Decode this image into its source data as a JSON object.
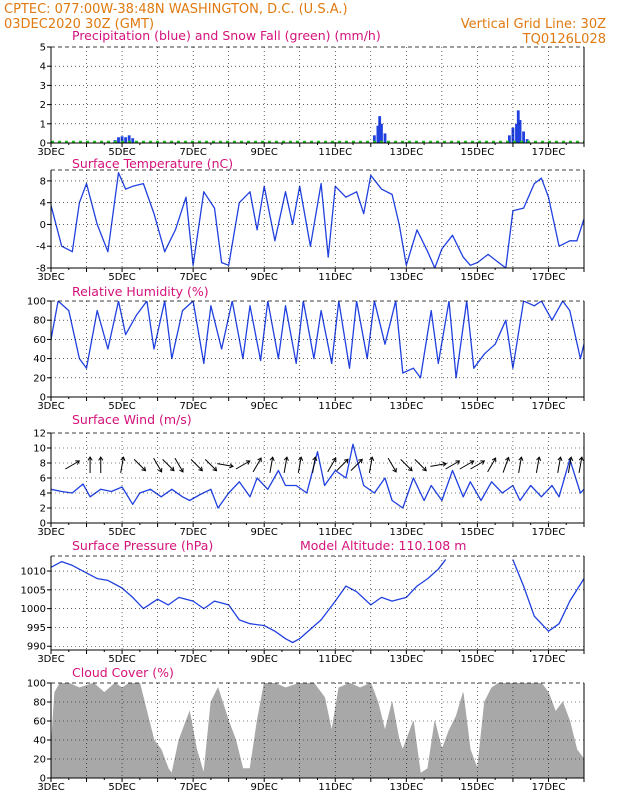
{
  "header": {
    "line1": "CPTEC:   077:00W-38:48N   WASHINGTON, D.C. (U.S.A.)",
    "line2": "03DEC2020 30Z (GMT)",
    "grid_note": "Vertical Grid Line: 30Z",
    "code": "TQ0126L028"
  },
  "colors": {
    "header": "#e07a10",
    "title": "#d4127a",
    "line": "#2040e0",
    "rain": "#2040e0",
    "snow": "#20c020",
    "cloud": "#a8a8a8"
  },
  "x_labels": [
    "3DEC",
    "5DEC",
    "7DEC",
    "9DEC",
    "11DEC",
    "13DEC",
    "15DEC",
    "17DEC"
  ],
  "x_label_days": [
    3,
    5,
    7,
    9,
    11,
    13,
    15,
    17
  ],
  "x_range_days": [
    3,
    18
  ],
  "chart_data": [
    {
      "type": "bar",
      "title": "Precipitation (blue) and Snow Fall (green) (mm/h)",
      "ylim": [
        0,
        5
      ],
      "yticks": [
        0,
        1,
        2,
        3,
        4,
        5
      ],
      "series": [
        {
          "name": "Precipitation",
          "x": [
            4.8,
            4.9,
            5.0,
            5.1,
            5.2,
            5.3,
            5.4,
            12.1,
            12.2,
            12.25,
            12.3,
            12.4,
            12.5,
            15.9,
            16.0,
            16.1,
            16.15,
            16.2,
            16.3,
            16.4
          ],
          "values": [
            0.15,
            0.3,
            0.35,
            0.3,
            0.4,
            0.25,
            0.1,
            0.4,
            0.9,
            1.4,
            1.0,
            0.5,
            0.1,
            0.4,
            0.8,
            1.0,
            1.7,
            1.2,
            0.6,
            0.2
          ]
        },
        {
          "name": "Snow Fall",
          "x": [
            3.0,
            5.0,
            7.0,
            9.0,
            11.0,
            13.0,
            15.0,
            17.0
          ],
          "values": [
            0.05,
            0.05,
            0.05,
            0.05,
            0.05,
            0.05,
            0.05,
            0.05
          ]
        }
      ]
    },
    {
      "type": "line",
      "title": "Surface Temperature (nC)",
      "ylim": [
        -8,
        10
      ],
      "yticks": [
        -8,
        -4,
        0,
        4,
        8
      ],
      "x": [
        3.0,
        3.3,
        3.6,
        3.8,
        4.0,
        4.3,
        4.6,
        4.9,
        5.1,
        5.3,
        5.6,
        5.9,
        6.2,
        6.5,
        6.8,
        7.0,
        7.3,
        7.6,
        7.8,
        8.0,
        8.3,
        8.6,
        8.8,
        9.0,
        9.3,
        9.6,
        9.8,
        10.0,
        10.3,
        10.6,
        10.8,
        11.0,
        11.3,
        11.6,
        11.8,
        12.0,
        12.3,
        12.6,
        12.8,
        13.0,
        13.3,
        13.6,
        13.8,
        14.0,
        14.3,
        14.6,
        14.8,
        15.0,
        15.3,
        15.6,
        15.8,
        16.0,
        16.3,
        16.6,
        16.8,
        17.0,
        17.3,
        17.6,
        17.8,
        18.0
      ],
      "values": [
        3.5,
        -4,
        -5,
        4,
        7.5,
        0,
        -5,
        9.5,
        6.5,
        7,
        7.5,
        2,
        -5,
        -1,
        5,
        -7.5,
        6,
        3,
        -7,
        -7.5,
        4,
        6,
        -1,
        7,
        -3,
        6,
        0,
        7,
        -4,
        7.5,
        -6,
        7,
        5,
        6,
        2,
        9,
        6.5,
        5.5,
        0,
        -7.5,
        -1,
        -5,
        -8,
        -4.5,
        -2,
        -6,
        -7.5,
        -7,
        -5.5,
        -7,
        -8,
        2.5,
        3,
        7.5,
        8.5,
        5,
        -4,
        -3,
        -3,
        1
      ]
    },
    {
      "type": "line",
      "title": "Relative Humidity (%)",
      "ylim": [
        0,
        100
      ],
      "yticks": [
        0,
        20,
        40,
        60,
        80,
        100
      ],
      "x": [
        3.0,
        3.2,
        3.5,
        3.8,
        4.0,
        4.3,
        4.6,
        4.9,
        5.1,
        5.4,
        5.7,
        5.9,
        6.2,
        6.4,
        6.7,
        7.0,
        7.3,
        7.5,
        7.8,
        8.1,
        8.4,
        8.6,
        8.9,
        9.1,
        9.4,
        9.6,
        9.9,
        10.1,
        10.4,
        10.6,
        10.9,
        11.1,
        11.4,
        11.6,
        11.9,
        12.1,
        12.4,
        12.7,
        12.9,
        13.2,
        13.4,
        13.7,
        13.9,
        14.2,
        14.4,
        14.7,
        14.9,
        15.2,
        15.5,
        15.8,
        16.0,
        16.3,
        16.6,
        16.8,
        17.1,
        17.4,
        17.6,
        17.9,
        18.0
      ],
      "values": [
        60,
        100,
        90,
        40,
        30,
        90,
        50,
        100,
        65,
        85,
        100,
        50,
        100,
        40,
        90,
        100,
        35,
        95,
        50,
        100,
        40,
        95,
        38,
        100,
        40,
        95,
        35,
        100,
        40,
        90,
        35,
        100,
        30,
        100,
        40,
        100,
        55,
        100,
        25,
        30,
        20,
        90,
        35,
        100,
        20,
        100,
        30,
        45,
        55,
        80,
        30,
        100,
        95,
        100,
        80,
        100,
        90,
        40,
        55
      ]
    },
    {
      "type": "line",
      "title": "Surface Wind (m/s)",
      "ylim": [
        0,
        12
      ],
      "yticks": [
        0,
        2,
        4,
        6,
        8,
        10,
        12
      ],
      "x": [
        3.0,
        3.3,
        3.6,
        3.9,
        4.1,
        4.4,
        4.7,
        5.0,
        5.3,
        5.5,
        5.8,
        6.1,
        6.4,
        6.7,
        6.9,
        7.2,
        7.5,
        7.7,
        8.0,
        8.3,
        8.6,
        8.8,
        9.1,
        9.4,
        9.6,
        9.9,
        10.2,
        10.5,
        10.7,
        11.0,
        11.3,
        11.5,
        11.8,
        12.1,
        12.4,
        12.6,
        12.9,
        13.2,
        13.5,
        13.7,
        14.0,
        14.3,
        14.6,
        14.8,
        15.1,
        15.4,
        15.7,
        16.0,
        16.2,
        16.5,
        16.8,
        17.1,
        17.3,
        17.6,
        17.9,
        18.0
      ],
      "values": [
        4.5,
        4.2,
        4,
        5.2,
        3.5,
        4.5,
        4.2,
        4.8,
        2.5,
        4,
        4.5,
        3.5,
        4.5,
        3.5,
        3,
        3.8,
        4.5,
        2,
        4,
        5.5,
        3.5,
        6,
        4.5,
        7,
        5,
        5,
        4,
        9.5,
        5,
        7,
        6,
        10.5,
        5,
        4,
        6,
        3,
        2,
        6,
        3,
        5,
        3,
        7,
        3.5,
        5.5,
        3,
        5.5,
        4,
        5,
        3,
        5,
        3.5,
        5,
        3.5,
        8.5,
        4,
        4.5
      ]
    },
    {
      "type": "line",
      "title": "Surface Pressure (hPa)",
      "annotation": "Model Altitude: 110.108  m",
      "ylim": [
        989,
        1014
      ],
      "yticks": [
        990,
        995,
        1000,
        1005,
        1010
      ],
      "x": [
        3.0,
        3.3,
        3.6,
        4.0,
        4.3,
        4.6,
        5.0,
        5.3,
        5.6,
        6.0,
        6.3,
        6.6,
        7.0,
        7.3,
        7.6,
        8.0,
        8.3,
        8.6,
        9.0,
        9.3,
        9.6,
        9.8,
        10.0,
        10.3,
        10.6,
        11.0,
        11.3,
        11.6,
        12.0,
        12.3,
        12.6,
        13.0,
        13.3,
        13.6,
        13.9,
        14.1,
        16.0,
        16.3,
        16.6,
        17.0,
        17.3,
        17.6,
        18.0
      ],
      "values": [
        1011,
        1012.5,
        1011.5,
        1009.5,
        1008,
        1007.5,
        1005.5,
        1003,
        1000,
        1002.5,
        1001,
        1003,
        1002,
        1000,
        1002,
        1001,
        997,
        996,
        995.5,
        994,
        992,
        991,
        992,
        994.5,
        997,
        1002,
        1006,
        1004.5,
        1001,
        1003,
        1002,
        1003,
        1006,
        1008,
        1010.5,
        1013,
        1013,
        1006,
        998,
        994,
        996,
        1002,
        1008
      ]
    },
    {
      "type": "area",
      "title": "Cloud Cover (%)",
      "ylim": [
        0,
        100
      ],
      "yticks": [
        0,
        20,
        40,
        60,
        80,
        100
      ],
      "x": [
        3.0,
        3.1,
        3.25,
        3.5,
        3.8,
        4.2,
        4.5,
        4.8,
        5.0,
        5.2,
        5.5,
        5.7,
        5.9,
        6.1,
        6.3,
        6.4,
        6.6,
        6.9,
        7.1,
        7.3,
        7.5,
        7.7,
        8.0,
        8.2,
        8.4,
        8.6,
        8.8,
        9.0,
        9.3,
        9.6,
        10.0,
        10.4,
        10.7,
        10.9,
        11.1,
        11.4,
        11.7,
        12.0,
        12.2,
        12.4,
        12.6,
        12.8,
        12.9,
        13.2,
        13.4,
        13.6,
        13.8,
        14.0,
        14.2,
        14.4,
        14.6,
        14.8,
        15.0,
        15.2,
        15.4,
        15.6,
        16.0,
        16.4,
        16.8,
        17.0,
        17.2,
        17.4,
        17.6,
        17.8,
        18.0
      ],
      "values": [
        30,
        90,
        100,
        100,
        95,
        100,
        90,
        100,
        95,
        100,
        100,
        70,
        40,
        30,
        10,
        5,
        40,
        70,
        30,
        5,
        80,
        95,
        60,
        40,
        10,
        10,
        60,
        100,
        100,
        95,
        100,
        100,
        85,
        50,
        95,
        100,
        95,
        100,
        80,
        50,
        80,
        40,
        30,
        60,
        5,
        10,
        60,
        30,
        50,
        65,
        90,
        30,
        10,
        80,
        95,
        100,
        100,
        100,
        100,
        90,
        70,
        80,
        60,
        30,
        20
      ]
    }
  ],
  "wind_arrows": {
    "x": [
      3.6,
      4.1,
      4.4,
      5.0,
      5.5,
      6.0,
      6.3,
      6.6,
      7.1,
      7.5,
      7.9,
      8.4,
      8.8,
      9.2,
      9.6,
      10.0,
      10.4,
      10.9,
      11.2,
      11.6,
      12.0,
      12.6,
      13.0,
      13.4,
      13.9,
      14.3,
      14.7,
      15.0,
      15.4,
      15.8,
      16.2,
      16.7,
      17.3,
      17.6,
      17.9
    ],
    "dir_deg": [
      60,
      0,
      0,
      10,
      135,
      150,
      135,
      150,
      135,
      135,
      100,
      60,
      30,
      10,
      10,
      10,
      10,
      30,
      45,
      45,
      10,
      150,
      135,
      135,
      80,
      60,
      60,
      60,
      30,
      20,
      10,
      10,
      10,
      10,
      10
    ]
  }
}
